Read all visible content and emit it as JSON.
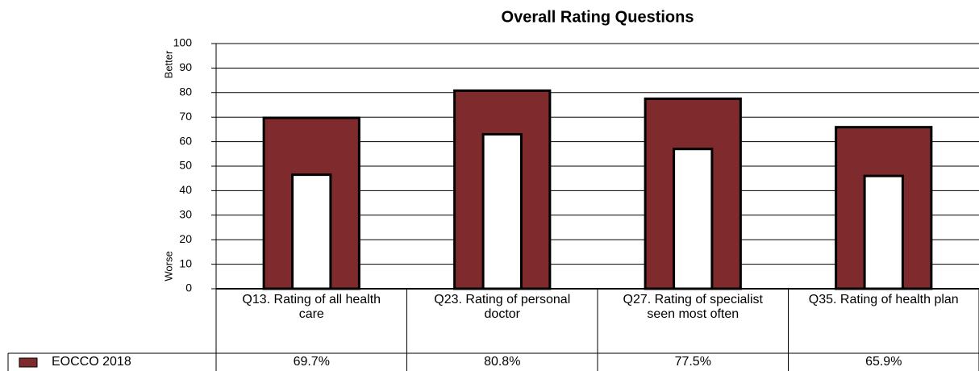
{
  "chart_data": {
    "type": "overlap_bar",
    "title": "Overall Rating Questions",
    "y_label_top": "Better",
    "y_label_bottom": "Worse",
    "categories": [
      "Q13. Rating of all health care",
      "Q23. Rating of personal doctor",
      "Q27. Rating of specialist seen most often",
      "Q35. Rating of health plan"
    ],
    "series": [
      {
        "name": "EOCCO 2018",
        "color": "#7f2b2d",
        "values": [
          69.7,
          80.8,
          77.5,
          65.9
        ],
        "value_labels": [
          "69.7%",
          "80.8%",
          "77.5%",
          "65.9%"
        ]
      },
      {
        "color": "#ffffff",
        "values": [
          46.5,
          63,
          57,
          46
        ]
      }
    ],
    "ylim": [
      0,
      100
    ],
    "yticks": [
      0,
      10,
      20,
      30,
      40,
      50,
      60,
      70,
      80,
      90,
      100
    ],
    "grid": true
  }
}
